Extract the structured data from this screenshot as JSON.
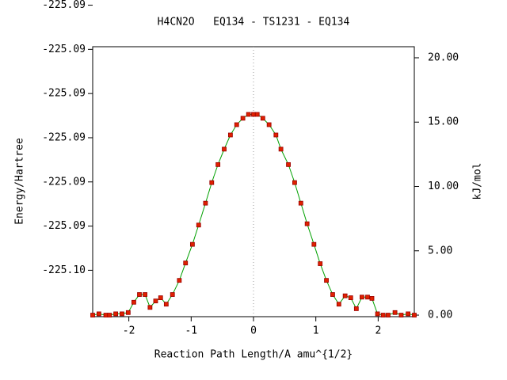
{
  "chart_data": {
    "type": "line",
    "title": "H4CN2O   EQ134 - TS1231 - EQ134",
    "x_label": "Reaction Path Length/A amu^{1/2}",
    "y_label": "Energy/Hartree",
    "y2_label": "kJ/mol",
    "xlim": [
      -2.58,
      2.58
    ],
    "xticks": [
      -2,
      -1,
      0,
      1,
      2
    ],
    "ylim": [
      -225.10105,
      -225.09494
    ],
    "yticks": [
      {
        "value": -225.1,
        "label": "-225.10"
      },
      {
        "value": -225.099,
        "label": "-225.09"
      },
      {
        "value": -225.098,
        "label": "-225.09"
      },
      {
        "value": -225.097,
        "label": "-225.09"
      },
      {
        "value": -225.096,
        "label": "-225.09"
      },
      {
        "value": -225.095,
        "label": "-225.09"
      },
      {
        "value": -225.094,
        "label": "-225.09"
      }
    ],
    "y2lim": [
      -0.12,
      20.86
    ],
    "y2ticks": [
      {
        "value": 0,
        "label": "0.00"
      },
      {
        "value": 5,
        "label": "5.00"
      },
      {
        "value": 10,
        "label": "10.00"
      },
      {
        "value": 15,
        "label": "15.00"
      },
      {
        "value": 20,
        "label": "20.00"
      }
    ],
    "vline": 0,
    "x": [
      -2.58,
      -2.48,
      -2.37,
      -2.31,
      -2.21,
      -2.11,
      -2.01,
      -1.92,
      -1.83,
      -1.74,
      -1.66,
      -1.57,
      -1.49,
      -1.4,
      -1.3,
      -1.19,
      -1.09,
      -0.98,
      -0.88,
      -0.77,
      -0.67,
      -0.57,
      -0.47,
      -0.37,
      -0.27,
      -0.17,
      -0.08,
      0,
      0.06,
      0.15,
      0.25,
      0.36,
      0.44,
      0.56,
      0.66,
      0.76,
      0.86,
      0.97,
      1.07,
      1.17,
      1.27,
      1.37,
      1.47,
      1.56,
      1.65,
      1.74,
      1.83,
      1.9,
      1.99,
      2.08,
      2.16,
      2.27,
      2.37,
      2.48,
      2.58
    ],
    "series": [
      {
        "axis": "y2",
        "color": "#00a000",
        "marker_color": "#e02000",
        "values": [
          0,
          0.1,
          0,
          0,
          0.1,
          0.1,
          0.2,
          1.0,
          1.6,
          1.6,
          0.6,
          1.1,
          1.35,
          0.85,
          1.6,
          2.7,
          4.05,
          5.5,
          7.0,
          8.7,
          10.3,
          11.7,
          12.9,
          14.0,
          14.8,
          15.3,
          15.6,
          15.6,
          15.6,
          15.3,
          14.8,
          14.0,
          12.9,
          11.7,
          10.3,
          8.7,
          7.1,
          5.5,
          4.0,
          2.7,
          1.6,
          0.85,
          1.5,
          1.35,
          0.5,
          1.4,
          1.4,
          1.3,
          0.1,
          0,
          0,
          0.2,
          0,
          0.1,
          0
        ]
      }
    ]
  }
}
